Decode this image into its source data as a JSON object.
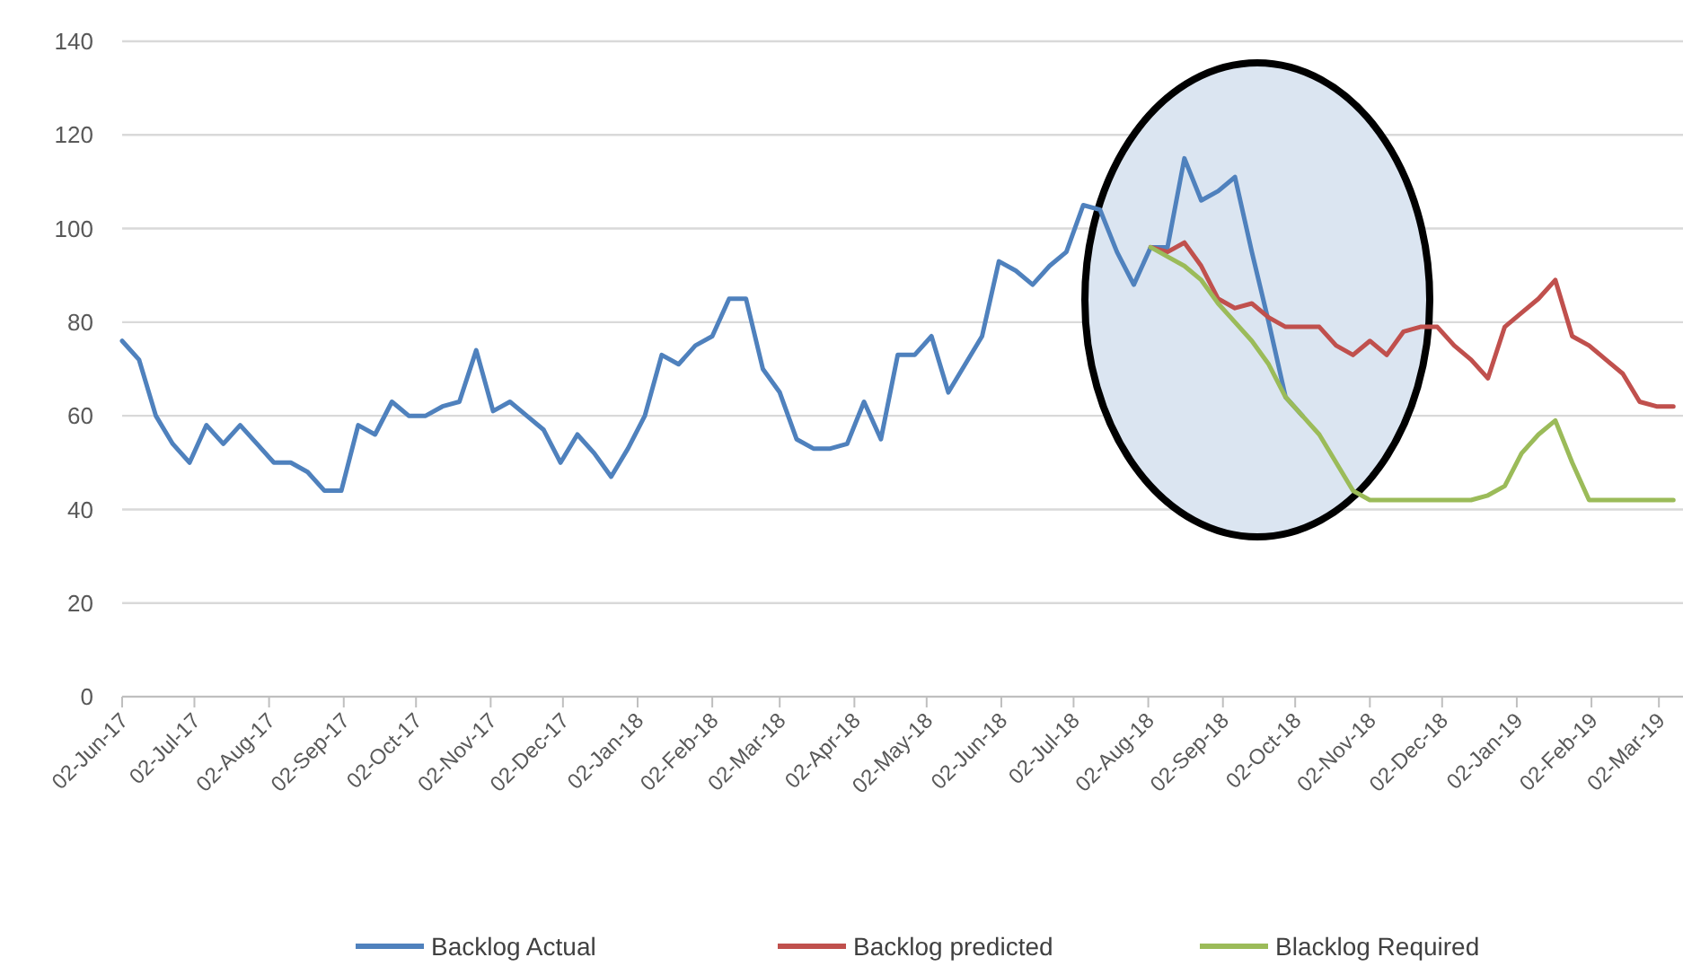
{
  "chart_data": {
    "type": "line",
    "x": [
      "2017-06-02",
      "2017-06-09",
      "2017-06-16",
      "2017-06-23",
      "2017-06-30",
      "2017-07-07",
      "2017-07-14",
      "2017-07-21",
      "2017-07-28",
      "2017-08-04",
      "2017-08-11",
      "2017-08-18",
      "2017-08-25",
      "2017-09-01",
      "2017-09-08",
      "2017-09-15",
      "2017-09-22",
      "2017-09-29",
      "2017-10-06",
      "2017-10-13",
      "2017-10-20",
      "2017-10-27",
      "2017-11-03",
      "2017-11-10",
      "2017-11-17",
      "2017-11-24",
      "2017-12-01",
      "2017-12-08",
      "2017-12-15",
      "2017-12-22",
      "2017-12-29",
      "2018-01-05",
      "2018-01-12",
      "2018-01-19",
      "2018-01-26",
      "2018-02-02",
      "2018-02-09",
      "2018-02-16",
      "2018-02-23",
      "2018-03-02",
      "2018-03-09",
      "2018-03-16",
      "2018-03-23",
      "2018-03-30",
      "2018-04-06",
      "2018-04-13",
      "2018-04-20",
      "2018-04-27",
      "2018-05-04",
      "2018-05-11",
      "2018-05-18",
      "2018-05-25",
      "2018-06-01",
      "2018-06-08",
      "2018-06-15",
      "2018-06-22",
      "2018-06-29",
      "2018-07-06",
      "2018-07-13",
      "2018-07-20",
      "2018-07-27",
      "2018-08-03",
      "2018-08-10",
      "2018-08-17",
      "2018-08-24",
      "2018-08-31",
      "2018-09-07",
      "2018-09-14",
      "2018-09-21",
      "2018-09-28",
      "2018-10-05",
      "2018-10-12",
      "2018-10-19",
      "2018-10-26",
      "2018-11-02",
      "2018-11-09",
      "2018-11-16",
      "2018-11-23",
      "2018-11-30",
      "2018-12-07",
      "2018-12-14",
      "2018-12-21",
      "2018-12-28",
      "2019-01-04",
      "2019-01-11",
      "2019-01-18",
      "2019-01-25",
      "2019-02-01",
      "2019-02-08",
      "2019-02-15",
      "2019-02-22",
      "2019-03-01",
      "2019-03-08"
    ],
    "series": [
      {
        "name": "Backlog Actual",
        "color": "#4f81bd",
        "values": [
          76,
          72,
          60,
          54,
          50,
          58,
          54,
          58,
          54,
          50,
          50,
          48,
          44,
          44,
          58,
          56,
          63,
          60,
          60,
          62,
          63,
          74,
          61,
          63,
          60,
          57,
          50,
          56,
          52,
          47,
          53,
          60,
          73,
          71,
          75,
          77,
          85,
          85,
          70,
          65,
          55,
          53,
          53,
          54,
          63,
          55,
          73,
          73,
          77,
          65,
          71,
          77,
          93,
          91,
          88,
          92,
          95,
          105,
          104,
          95,
          88,
          96,
          96,
          115,
          106,
          108,
          111,
          95,
          80,
          64,
          60,
          null,
          null,
          null,
          null,
          null,
          null,
          null,
          null,
          null,
          null,
          null,
          null,
          null,
          null,
          null,
          null,
          null,
          null,
          null,
          null,
          null,
          null
        ]
      },
      {
        "name": "Backlog predicted",
        "color": "#c0504d",
        "values": [
          null,
          null,
          null,
          null,
          null,
          null,
          null,
          null,
          null,
          null,
          null,
          null,
          null,
          null,
          null,
          null,
          null,
          null,
          null,
          null,
          null,
          null,
          null,
          null,
          null,
          null,
          null,
          null,
          null,
          null,
          null,
          null,
          null,
          null,
          null,
          null,
          null,
          null,
          null,
          null,
          null,
          null,
          null,
          null,
          null,
          null,
          null,
          null,
          null,
          null,
          null,
          null,
          null,
          null,
          null,
          null,
          null,
          null,
          null,
          null,
          null,
          96,
          95,
          97,
          92,
          85,
          83,
          84,
          81,
          79,
          79,
          79,
          75,
          73,
          76,
          73,
          78,
          79,
          79,
          75,
          72,
          68,
          79,
          82,
          85,
          89,
          77,
          75,
          72,
          69,
          63,
          62,
          62
        ]
      },
      {
        "name": "Blacklog Required",
        "color": "#9bbb59",
        "values": [
          null,
          null,
          null,
          null,
          null,
          null,
          null,
          null,
          null,
          null,
          null,
          null,
          null,
          null,
          null,
          null,
          null,
          null,
          null,
          null,
          null,
          null,
          null,
          null,
          null,
          null,
          null,
          null,
          null,
          null,
          null,
          null,
          null,
          null,
          null,
          null,
          null,
          null,
          null,
          null,
          null,
          null,
          null,
          null,
          null,
          null,
          null,
          null,
          null,
          null,
          null,
          null,
          null,
          null,
          null,
          null,
          null,
          null,
          null,
          null,
          null,
          96,
          94,
          92,
          89,
          84,
          80,
          76,
          71,
          64,
          60,
          56,
          50,
          44,
          42,
          42,
          42,
          42,
          42,
          42,
          42,
          43,
          45,
          52,
          56,
          59,
          50,
          42,
          42,
          42,
          42,
          42,
          42
        ]
      }
    ],
    "xlim": [
      "2017-06-02",
      "2019-03-12"
    ],
    "xticks": [
      {
        "value": "2017-06-02",
        "label": "02-Jun-17"
      },
      {
        "value": "2017-07-02",
        "label": "02-Jul-17"
      },
      {
        "value": "2017-08-02",
        "label": "02-Aug-17"
      },
      {
        "value": "2017-09-02",
        "label": "02-Sep-17"
      },
      {
        "value": "2017-10-02",
        "label": "02-Oct-17"
      },
      {
        "value": "2017-11-02",
        "label": "02-Nov-17"
      },
      {
        "value": "2017-12-02",
        "label": "02-Dec-17"
      },
      {
        "value": "2018-01-02",
        "label": "02-Jan-18"
      },
      {
        "value": "2018-02-02",
        "label": "02-Feb-18"
      },
      {
        "value": "2018-03-02",
        "label": "02-Mar-18"
      },
      {
        "value": "2018-04-02",
        "label": "02-Apr-18"
      },
      {
        "value": "2018-05-02",
        "label": "02-May-18"
      },
      {
        "value": "2018-06-02",
        "label": "02-Jun-18"
      },
      {
        "value": "2018-07-02",
        "label": "02-Jul-18"
      },
      {
        "value": "2018-08-02",
        "label": "02-Aug-18"
      },
      {
        "value": "2018-09-02",
        "label": "02-Sep-18"
      },
      {
        "value": "2018-10-02",
        "label": "02-Oct-18"
      },
      {
        "value": "2018-11-02",
        "label": "02-Nov-18"
      },
      {
        "value": "2018-12-02",
        "label": "02-Dec-18"
      },
      {
        "value": "2019-01-02",
        "label": "02-Jan-19"
      },
      {
        "value": "2019-02-02",
        "label": "02-Feb-19"
      },
      {
        "value": "2019-03-02",
        "label": "02-Mar-19"
      }
    ],
    "ylim": [
      0,
      140
    ],
    "yticks": [
      0,
      20,
      40,
      60,
      80,
      100,
      120,
      140
    ],
    "grid": "y",
    "legend": "bottom",
    "marker": "none",
    "line_style": "solid"
  }
}
